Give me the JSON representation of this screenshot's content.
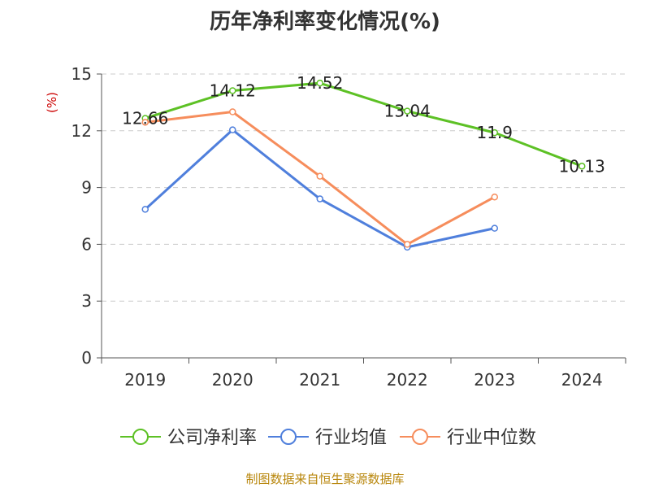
{
  "source_text": "制图数据来自恒生聚源数据库",
  "chart_data": {
    "type": "line",
    "title": "历年净利率变化情况(%)",
    "ylabel": "(%)",
    "xlabel": "",
    "categories": [
      "2019",
      "2020",
      "2021",
      "2022",
      "2023",
      "2024"
    ],
    "ylim": [
      0,
      15
    ],
    "yticks": [
      "0",
      "3",
      "6",
      "9",
      "12",
      "15"
    ],
    "grid": true,
    "legend_position": "bottom",
    "series": [
      {
        "name": "公司净利率",
        "color": "#5dc125",
        "values": [
          12.66,
          14.12,
          14.52,
          13.04,
          11.9,
          10.13
        ],
        "labels": [
          "12.66",
          "14.12",
          "14.52",
          "13.04",
          "11.9",
          "10.13"
        ]
      },
      {
        "name": "行业均值",
        "color": "#4f7fdc",
        "values": [
          7.85,
          12.05,
          8.4,
          5.85,
          6.85,
          null
        ]
      },
      {
        "name": "行业中位数",
        "color": "#f68d5c",
        "values": [
          12.45,
          13.0,
          9.6,
          6.0,
          8.5,
          null
        ]
      }
    ]
  }
}
